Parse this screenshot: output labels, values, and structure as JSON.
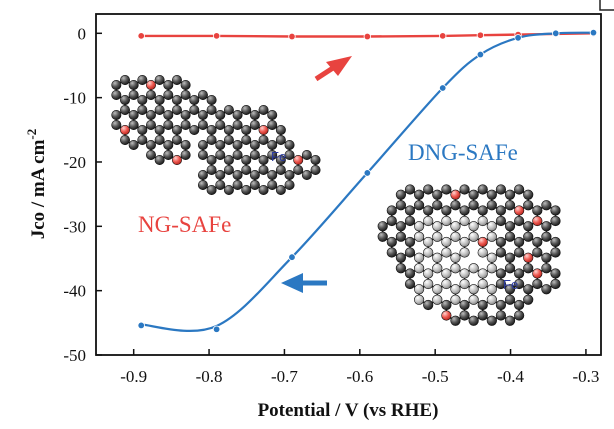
{
  "chart_data": {
    "type": "line",
    "xlabel": "Potential / V (vs RHE)",
    "ylabel_main": "Jco / mA cm",
    "ylabel_sup": "-2",
    "xlim": [
      -0.95,
      -0.28
    ],
    "ylim": [
      -50,
      3
    ],
    "xticks": [
      -0.9,
      -0.8,
      -0.7,
      -0.6,
      -0.5,
      -0.4,
      -0.3
    ],
    "xtick_labels": [
      "-0.9",
      "-0.8",
      "-0.7",
      "-0.6",
      "-0.5",
      "-0.4",
      "-0.3"
    ],
    "yticks": [
      0,
      -10,
      -20,
      -30,
      -40,
      -50
    ],
    "ytick_labels": [
      "0",
      "-10",
      "-20",
      "-30",
      "-40",
      "-50"
    ],
    "grid": false,
    "series": [
      {
        "name": "NG-SAFe",
        "color": "#e8433f",
        "x": [
          -0.89,
          -0.79,
          -0.69,
          -0.59,
          -0.49,
          -0.44,
          -0.39,
          -0.34,
          -0.29
        ],
        "y": [
          -0.4,
          -0.4,
          -0.5,
          -0.5,
          -0.4,
          -0.3,
          -0.2,
          -0.1,
          0.0
        ]
      },
      {
        "name": "DNG-SAFe",
        "color": "#2b78c2",
        "x": [
          -0.89,
          -0.79,
          -0.69,
          -0.59,
          -0.49,
          -0.44,
          -0.39,
          -0.34,
          -0.29
        ],
        "y": [
          -45.4,
          -46.0,
          -34.8,
          -21.7,
          -8.5,
          -3.3,
          -0.7,
          0.0,
          0.1
        ]
      }
    ],
    "annotations": [
      {
        "text": "NG-SAFe",
        "color": "#e8433f"
      },
      {
        "text": "DNG-SAFe",
        "color": "#2b78c2"
      },
      {
        "text": "Fe",
        "color": "#2a3aa0"
      },
      {
        "text": "Fe",
        "color": "#2a3aa0"
      }
    ]
  }
}
